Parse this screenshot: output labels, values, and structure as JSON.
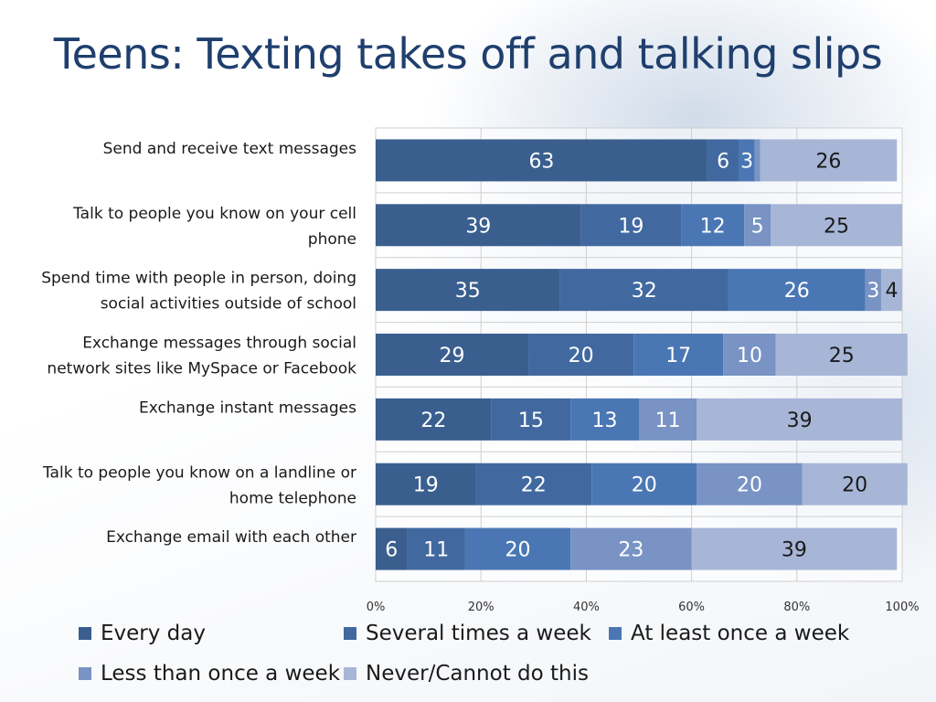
{
  "title": "Teens: Texting takes off and talking slips",
  "chart_data": {
    "type": "bar",
    "orientation": "horizontal",
    "stacked": true,
    "categories": [
      "Send and receive text messages",
      "Talk to people you know on your cell phone",
      "Spend time with people in person, doing social activities outside of school",
      "Exchange messages through social network sites like MySpace or Facebook",
      "Exchange instant messages",
      "Talk to people you know on a landline or home telephone",
      "Exchange email with each other"
    ],
    "category_lines": [
      [
        "Send and receive text messages"
      ],
      [
        "Talk to people you know on your cell",
        "phone"
      ],
      [
        "Spend time with people in person, doing",
        "social activities outside of school"
      ],
      [
        "Exchange messages through social",
        "network sites like MySpace or Facebook"
      ],
      [
        "Exchange instant messages"
      ],
      [
        "Talk to people you know on a landline or",
        "home telephone"
      ],
      [
        "Exchange email with each other"
      ]
    ],
    "series": [
      {
        "name": "Every day",
        "color": "#3a5f8f",
        "values": [
          63,
          39,
          35,
          29,
          22,
          19,
          6
        ]
      },
      {
        "name": "Several times a week",
        "color": "#4169a0",
        "values": [
          6,
          19,
          32,
          20,
          15,
          22,
          11
        ]
      },
      {
        "name": "At least once a week",
        "color": "#4a77b4",
        "values": [
          3,
          12,
          26,
          17,
          13,
          20,
          20
        ]
      },
      {
        "name": "Less than once a week",
        "color": "#7893c4",
        "values": [
          1,
          5,
          3,
          10,
          11,
          20,
          23
        ]
      },
      {
        "name": "Never/Cannot do this",
        "color": "#a7b6d7",
        "values": [
          26,
          25,
          4,
          25,
          39,
          20,
          39
        ]
      }
    ],
    "value_labels": [
      [
        "63",
        "6",
        "3",
        "",
        "26"
      ],
      [
        "39",
        "19",
        "12",
        "5",
        "25"
      ],
      [
        "35",
        "32",
        "26",
        "3",
        "4"
      ],
      [
        "29",
        "20",
        "17",
        "10",
        "25"
      ],
      [
        "22",
        "15",
        "13",
        "11",
        "39"
      ],
      [
        "19",
        "22",
        "20",
        "20",
        "20"
      ],
      [
        "6",
        "11",
        "20",
        "23",
        "39"
      ]
    ],
    "xlim": [
      0,
      100
    ],
    "xticks": [
      "0%",
      "20%",
      "40%",
      "60%",
      "80%",
      "100%"
    ],
    "grid": true,
    "legend_position": "bottom"
  }
}
